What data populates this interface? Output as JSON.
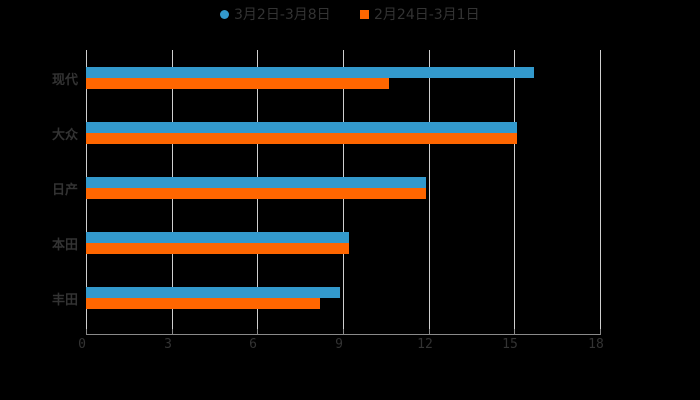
{
  "chart_data": {
    "type": "bar",
    "orientation": "horizontal",
    "title": "",
    "xlabel": "",
    "ylabel": "",
    "categories": [
      "现代",
      "大众",
      "日产",
      "本田",
      "丰田"
    ],
    "series": [
      {
        "name": "3月2日-3月8日",
        "color": "#3399cc",
        "marker": "circle",
        "values": [
          15.7,
          15.1,
          11.9,
          9.2,
          8.9
        ]
      },
      {
        "name": "2月24日-3月1日",
        "color": "#ff6600",
        "marker": "square",
        "values": [
          10.6,
          15.1,
          11.9,
          9.2,
          8.2
        ]
      }
    ],
    "xlim": [
      0,
      18
    ],
    "xticks": [
      "0",
      "3",
      "6",
      "9",
      "12",
      "15",
      "18"
    ],
    "grid": true,
    "legend_position": "top"
  },
  "legend": [
    {
      "label": "3月2日-3月8日",
      "color": "#3399cc"
    },
    {
      "label": "2月24日-3月1日",
      "color": "#ff6600"
    }
  ]
}
